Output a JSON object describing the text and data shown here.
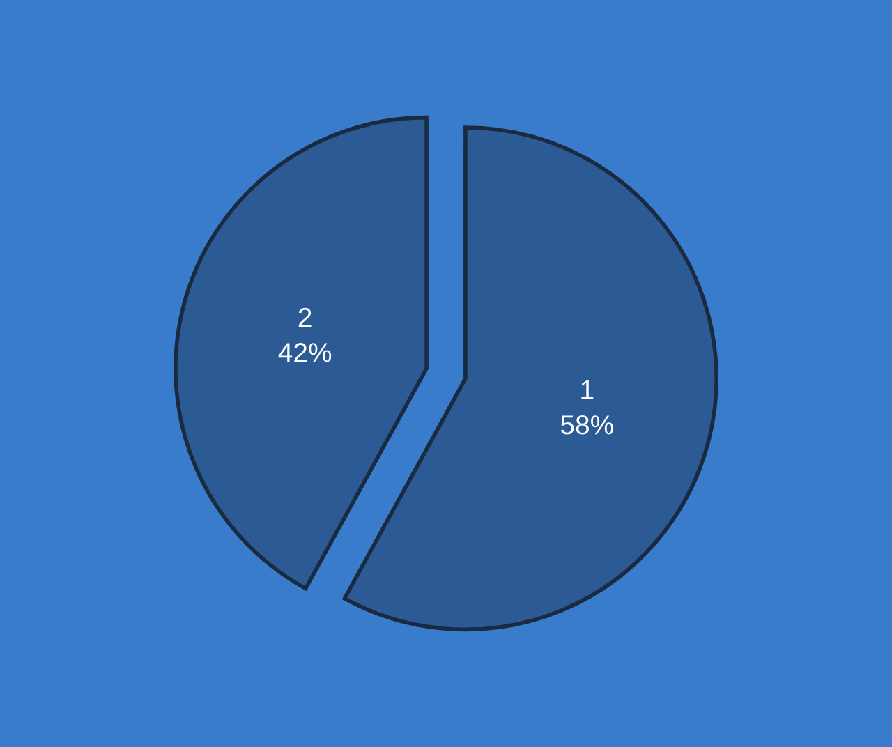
{
  "chart_data": {
    "type": "pie",
    "categories": [
      "1",
      "2"
    ],
    "values": [
      58,
      42
    ],
    "colors": [
      "#2b5a94",
      "#2b5a94"
    ],
    "value_labels": [
      "58%",
      "42%"
    ]
  }
}
